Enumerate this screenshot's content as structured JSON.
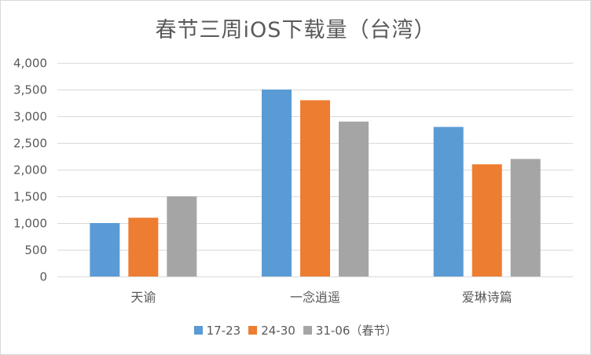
{
  "chart_data": {
    "type": "bar",
    "title": "春节三周iOS下载量（台湾）",
    "categories": [
      "天谕",
      "一念逍遥",
      "爱琳诗篇"
    ],
    "series": [
      {
        "name": "17-23",
        "color": "#5b9bd5",
        "values": [
          1000,
          3500,
          2800
        ]
      },
      {
        "name": "24-30",
        "color": "#ed7d31",
        "values": [
          1100,
          3300,
          2100
        ]
      },
      {
        "name": "31-06（春节）",
        "color": "#a5a5a5",
        "values": [
          1500,
          2900,
          2200
        ]
      }
    ],
    "ylim": [
      0,
      4000
    ],
    "yticks": [
      0,
      500,
      1000,
      1500,
      2000,
      2500,
      3000,
      3500,
      4000
    ],
    "ytick_labels": [
      "0",
      "500",
      "1,000",
      "1,500",
      "2,000",
      "2,500",
      "3,000",
      "3,500",
      "4,000"
    ],
    "grid": true,
    "legend": "bottom"
  }
}
